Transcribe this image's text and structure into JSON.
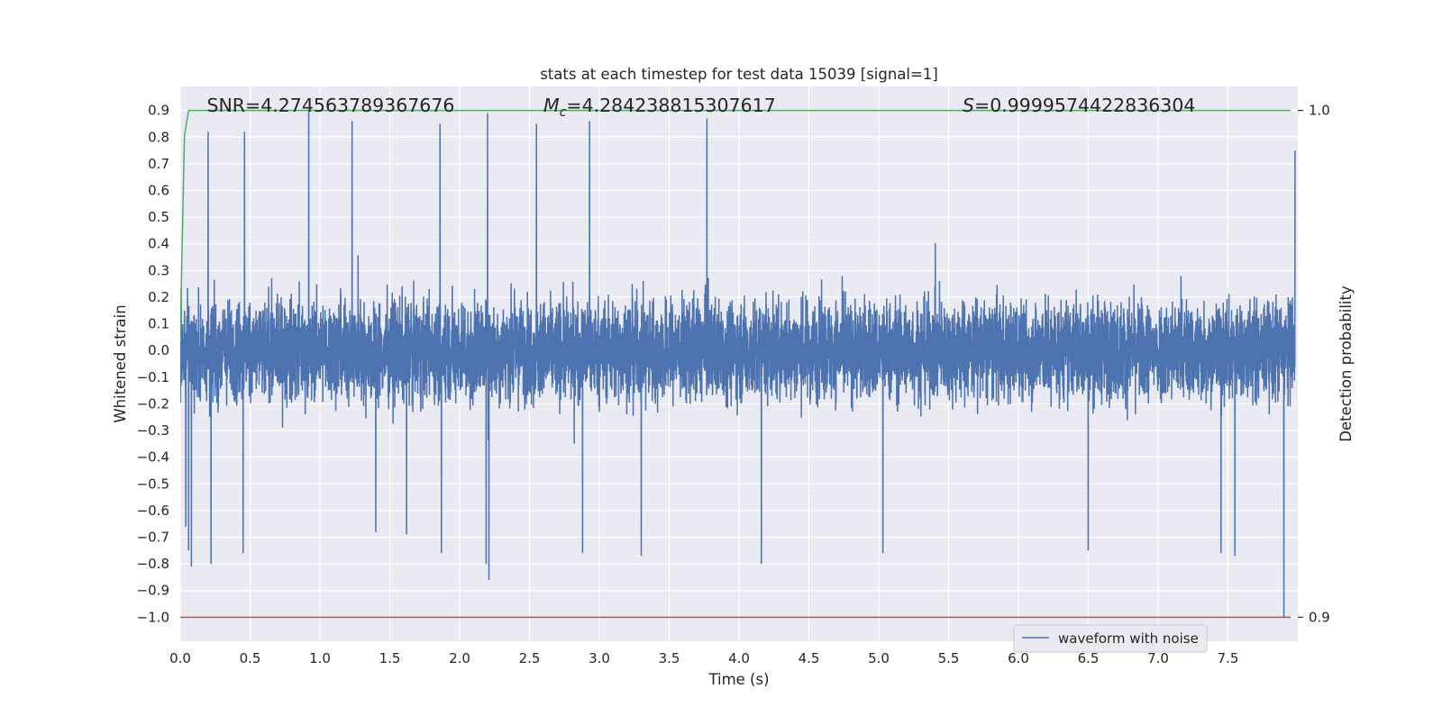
{
  "chart_data": {
    "type": "line",
    "title": "stats at each timestep for test data 15039 [signal=1]",
    "xlabel": "Time (s)",
    "ylabel": "Whitened strain",
    "y2label": "Detection probability",
    "xlim": [
      0.0,
      8.0
    ],
    "ylim": [
      -1.09,
      0.99
    ],
    "y2lim": [
      0.9,
      1.0
    ],
    "grid": true,
    "legend_placement": "lower-center-right",
    "x_ticks": [
      "0.0",
      "0.5",
      "1.0",
      "1.5",
      "2.0",
      "2.5",
      "3.0",
      "3.5",
      "4.0",
      "4.5",
      "5.0",
      "5.5",
      "6.0",
      "6.5",
      "7.0",
      "7.5"
    ],
    "y_ticks": [
      "−1.0",
      "−0.9",
      "−0.8",
      "−0.7",
      "−0.6",
      "−0.5",
      "−0.4",
      "−0.3",
      "−0.2",
      "−0.1",
      "0.0",
      "0.1",
      "0.2",
      "0.3",
      "0.4",
      "0.5",
      "0.6",
      "0.7",
      "0.8",
      "0.9"
    ],
    "y2_ticks": [
      "0.9",
      "1.0"
    ],
    "annotations": [
      {
        "prefix": "SNR",
        "subscript": "",
        "text": "=4.274563789367676",
        "x": 0.19
      },
      {
        "prefix": "M",
        "subscript": "c",
        "text": "=4.284238815307617",
        "x": 2.6
      },
      {
        "prefix": "S",
        "subscript": "",
        "text": "=0.9999574422836304",
        "x": 5.6
      }
    ],
    "series": [
      {
        "name": "waveform with noise",
        "axis": "left",
        "color": "#4c72b0",
        "sample_count": 8000,
        "amplitude_typical": 0.42,
        "peaks": [
          {
            "x": 0.04,
            "y": -0.66
          },
          {
            "x": 0.06,
            "y": -0.75
          },
          {
            "x": 0.08,
            "y": -0.81
          },
          {
            "x": 0.2,
            "y": 0.82
          },
          {
            "x": 0.22,
            "y": -0.8
          },
          {
            "x": 0.45,
            "y": -0.76
          },
          {
            "x": 0.46,
            "y": 0.82
          },
          {
            "x": 0.92,
            "y": 0.9
          },
          {
            "x": 1.23,
            "y": 0.86
          },
          {
            "x": 1.4,
            "y": -0.68
          },
          {
            "x": 1.62,
            "y": -0.69
          },
          {
            "x": 1.86,
            "y": 0.85
          },
          {
            "x": 1.87,
            "y": -0.76
          },
          {
            "x": 2.19,
            "y": -0.8
          },
          {
            "x": 2.2,
            "y": 0.89
          },
          {
            "x": 2.21,
            "y": -0.86
          },
          {
            "x": 2.55,
            "y": 0.85
          },
          {
            "x": 2.88,
            "y": -0.76
          },
          {
            "x": 2.93,
            "y": 0.86
          },
          {
            "x": 3.3,
            "y": -0.77
          },
          {
            "x": 3.77,
            "y": 0.87
          },
          {
            "x": 4.16,
            "y": -0.8
          },
          {
            "x": 5.03,
            "y": -0.76
          },
          {
            "x": 6.5,
            "y": -0.75
          },
          {
            "x": 7.45,
            "y": -0.76
          },
          {
            "x": 7.55,
            "y": -0.77
          },
          {
            "x": 7.9,
            "y": -1.0
          },
          {
            "x": 7.98,
            "y": 0.75
          }
        ]
      },
      {
        "name": "",
        "axis": "right",
        "color": "#55a868",
        "x": [
          0.0,
          0.03,
          0.06,
          0.1,
          7.95
        ],
        "y": [
          0.955,
          0.995,
          1.0,
          1.0,
          1.0
        ]
      },
      {
        "name": "",
        "axis": "right",
        "color": "#c44e52",
        "x": [
          0.0,
          7.95
        ],
        "y": [
          0.9,
          0.9
        ]
      }
    ]
  }
}
